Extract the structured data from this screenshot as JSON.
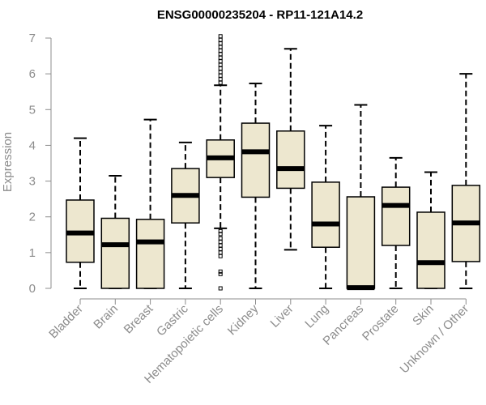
{
  "chart_data": {
    "type": "boxplot",
    "title": "ENSG00000235204 - RP11-121A14.2",
    "xlabel": "",
    "ylabel": "Expression",
    "ylim": [
      0,
      7
    ],
    "yticks": [
      0,
      1,
      2,
      3,
      4,
      5,
      6,
      7
    ],
    "box_fill": "#ede7cf",
    "categories": [
      "Bladder",
      "Brain",
      "Breast",
      "Gastric",
      "Hematopoietic cells",
      "Kidney",
      "Liver",
      "Lung",
      "Pancreas",
      "Prostate",
      "Skin",
      "Unknown / Other"
    ],
    "boxes": [
      {
        "label": "Bladder",
        "whisker_low": 0,
        "q1": 0.73,
        "median": 1.55,
        "q3": 2.47,
        "whisker_high": 4.2,
        "outliers": []
      },
      {
        "label": "Brain",
        "whisker_low": 0,
        "q1": 0,
        "median": 1.22,
        "q3": 1.96,
        "whisker_high": 3.15,
        "outliers": []
      },
      {
        "label": "Breast",
        "whisker_low": 0,
        "q1": 0,
        "median": 1.3,
        "q3": 1.93,
        "whisker_high": 4.72,
        "outliers": []
      },
      {
        "label": "Gastric",
        "whisker_low": 0,
        "q1": 1.83,
        "median": 2.6,
        "q3": 3.35,
        "whisker_high": 4.08,
        "outliers": []
      },
      {
        "label": "Hematopoietic cells",
        "whisker_low": 1.68,
        "q1": 3.1,
        "median": 3.65,
        "q3": 4.15,
        "whisker_high": 5.68,
        "outliers": [
          0,
          0.4,
          0.47,
          0.9,
          1.0,
          1.1,
          1.2,
          1.3,
          1.4,
          1.52,
          1.6,
          5.75,
          5.85,
          5.95,
          6.05,
          6.15,
          6.25,
          6.35,
          6.45,
          6.55,
          6.65,
          6.75,
          6.85,
          6.95,
          7.05
        ]
      },
      {
        "label": "Kidney",
        "whisker_low": 0,
        "q1": 2.55,
        "median": 3.82,
        "q3": 4.62,
        "whisker_high": 5.73,
        "outliers": []
      },
      {
        "label": "Liver",
        "whisker_low": 1.08,
        "q1": 2.8,
        "median": 3.35,
        "q3": 4.4,
        "whisker_high": 6.7,
        "outliers": []
      },
      {
        "label": "Lung",
        "whisker_low": 0,
        "q1": 1.15,
        "median": 1.8,
        "q3": 2.97,
        "whisker_high": 4.55,
        "outliers": []
      },
      {
        "label": "Pancreas",
        "whisker_low": 0,
        "q1": 0,
        "median": 0.02,
        "q3": 2.56,
        "whisker_high": 5.13,
        "outliers": []
      },
      {
        "label": "Prostate",
        "whisker_low": 0,
        "q1": 1.2,
        "median": 2.32,
        "q3": 2.83,
        "whisker_high": 3.65,
        "outliers": []
      },
      {
        "label": "Skin",
        "whisker_low": 0,
        "q1": 0,
        "median": 0.72,
        "q3": 2.13,
        "whisker_high": 3.25,
        "outliers": []
      },
      {
        "label": "Unknown / Other",
        "whisker_low": 0,
        "q1": 0.75,
        "median": 1.83,
        "q3": 2.88,
        "whisker_high": 6.0,
        "outliers": []
      }
    ]
  }
}
